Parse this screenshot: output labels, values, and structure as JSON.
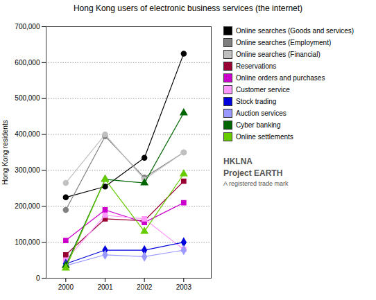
{
  "chart_data": {
    "type": "line",
    "title": "Hong Kong users of electronic business services (the internet)",
    "y_label": "Hong Kong residents",
    "x": [
      2000,
      2001,
      2002,
      2003
    ],
    "xlim": [
      1999.5,
      2003.7
    ],
    "xticks": [
      2000,
      2001,
      2002,
      2003
    ],
    "ylim": [
      0,
      700000
    ],
    "yticks": [
      0,
      {
        "value": 100000,
        "label": "100,000"
      },
      {
        "value": 200000,
        "label": "200,000"
      },
      {
        "value": 300000,
        "label": "300,000"
      },
      {
        "value": 400000,
        "label": "400,000"
      },
      {
        "value": 500000,
        "label": "500,000"
      },
      {
        "value": 600000,
        "label": "600,000"
      },
      {
        "value": 700000,
        "label": "700,000"
      }
    ],
    "grid": "y",
    "legend": "right",
    "annotations": [
      "HKLNA",
      "Project EARTH",
      "A registered trade mark"
    ],
    "series": [
      {
        "name": "Online searches (Goods and services)",
        "color": "#000000",
        "marker": "circle",
        "values": [
          225000,
          255000,
          335000,
          625000
        ]
      },
      {
        "name": "Online searches (Employment)",
        "color": "#808080",
        "marker": "circle",
        "values": [
          190000,
          395000,
          280000,
          350000
        ]
      },
      {
        "name": "Online searches (Financial)",
        "color": "#c0c0c0",
        "marker": "circle",
        "values": [
          265000,
          400000,
          275000,
          350000
        ]
      },
      {
        "name": "Reservations",
        "color": "#990033",
        "marker": "square",
        "values": [
          65000,
          165000,
          160000,
          270000
        ]
      },
      {
        "name": "Online orders and purchases",
        "color": "#cc00cc",
        "marker": "square",
        "values": [
          105000,
          190000,
          155000,
          210000
        ]
      },
      {
        "name": "Customer service",
        "color": "#ff99ff",
        "marker": "square",
        "values": [
          50000,
          175000,
          165000,
          80000
        ]
      },
      {
        "name": "Stock trading",
        "color": "#0000dd",
        "marker": "diamond",
        "values": [
          40000,
          78000,
          78000,
          100000
        ]
      },
      {
        "name": "Auction services",
        "color": "#9999ff",
        "marker": "diamond",
        "values": [
          35000,
          65000,
          60000,
          78000
        ]
      },
      {
        "name": "Cyber banking",
        "color": "#006600",
        "marker": "triangle",
        "values": [
          35000,
          275000,
          265000,
          460000
        ]
      },
      {
        "name": "Online settlements",
        "color": "#66cc00",
        "marker": "triangle",
        "values": [
          28000,
          275000,
          130000,
          290000
        ]
      }
    ]
  }
}
